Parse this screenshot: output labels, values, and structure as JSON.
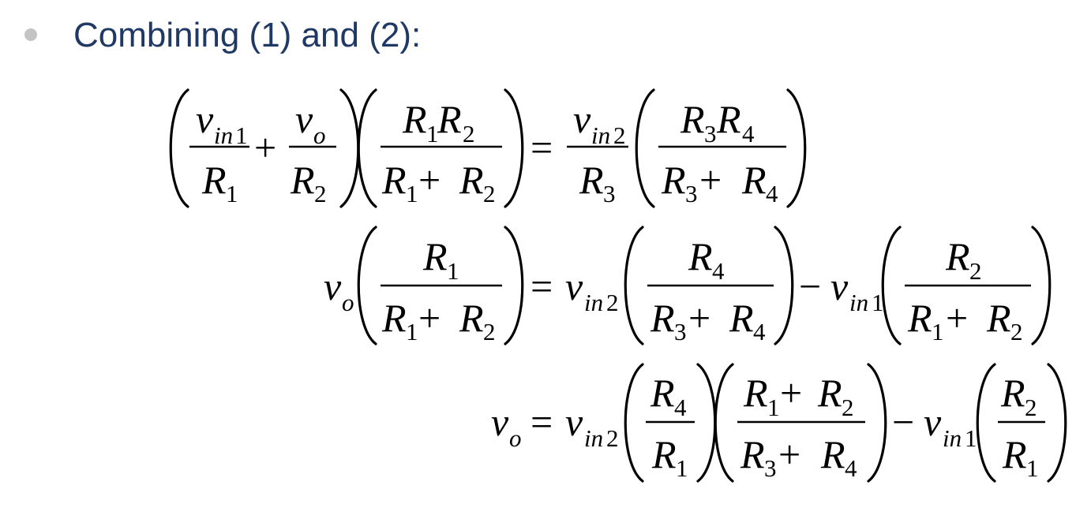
{
  "slide": {
    "bullet_color": "#c4c4c4",
    "heading_color": "#1f3864",
    "heading": "Combining (1) and (2):"
  },
  "symbols": {
    "v": "v",
    "R": "R",
    "in": "in",
    "o": "o",
    "one": "1",
    "two": "2",
    "three": "3",
    "four": "4",
    "plus": "+",
    "minus": "−",
    "equals": "="
  }
}
